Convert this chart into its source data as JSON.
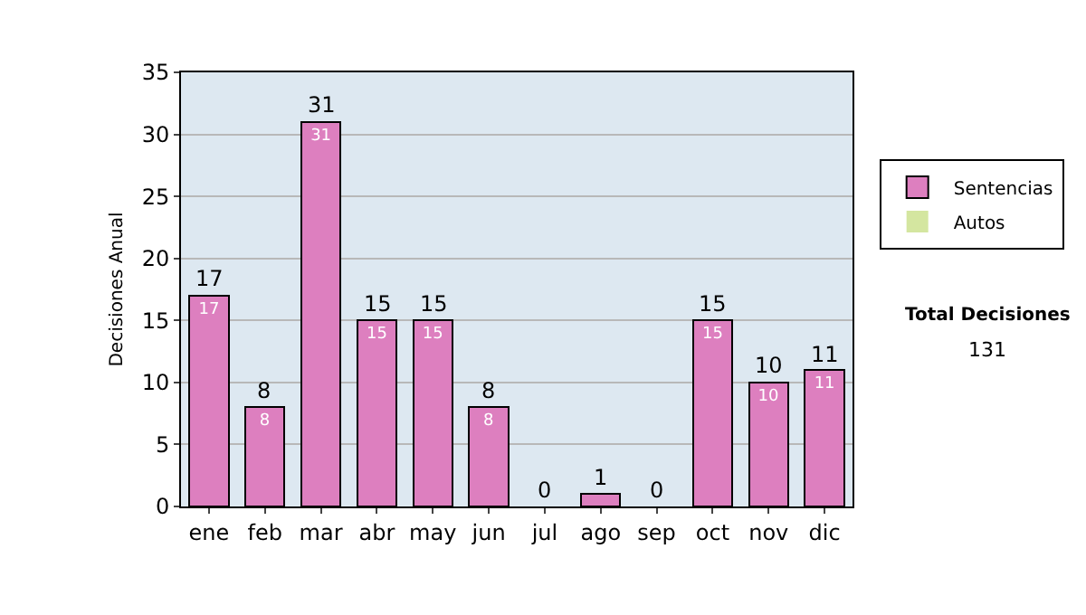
{
  "chart_data": {
    "type": "bar",
    "stacked": true,
    "ylabel": "Decisiones Anual",
    "categories": [
      "ene",
      "feb",
      "mar",
      "abr",
      "may",
      "jun",
      "jul",
      "ago",
      "sep",
      "oct",
      "nov",
      "dic"
    ],
    "series": [
      {
        "name": "Sentencias",
        "color": "#dd7fbf",
        "values": [
          17,
          8,
          31,
          15,
          15,
          8,
          0,
          1,
          0,
          15,
          10,
          11
        ],
        "value_labels": [
          "17",
          "8",
          "31",
          "15",
          "15",
          "8",
          null,
          null,
          null,
          "15",
          "10",
          "11"
        ]
      },
      {
        "name": "Autos",
        "color": "#d4e6a0",
        "values": [
          0,
          0,
          0,
          0,
          0,
          0,
          0,
          0,
          0,
          0,
          0,
          0
        ]
      }
    ],
    "totals": [
      "17",
      "8",
      "31",
      "15",
      "15",
      "8",
      "0",
      "1",
      "0",
      "15",
      "10",
      "11"
    ],
    "ylim": [
      0,
      35
    ],
    "yticks": [
      0,
      5,
      10,
      15,
      20,
      25,
      30,
      35
    ],
    "grid": "y",
    "legend": "right",
    "annotations": [
      "Total Decisiones",
      "131"
    ]
  }
}
